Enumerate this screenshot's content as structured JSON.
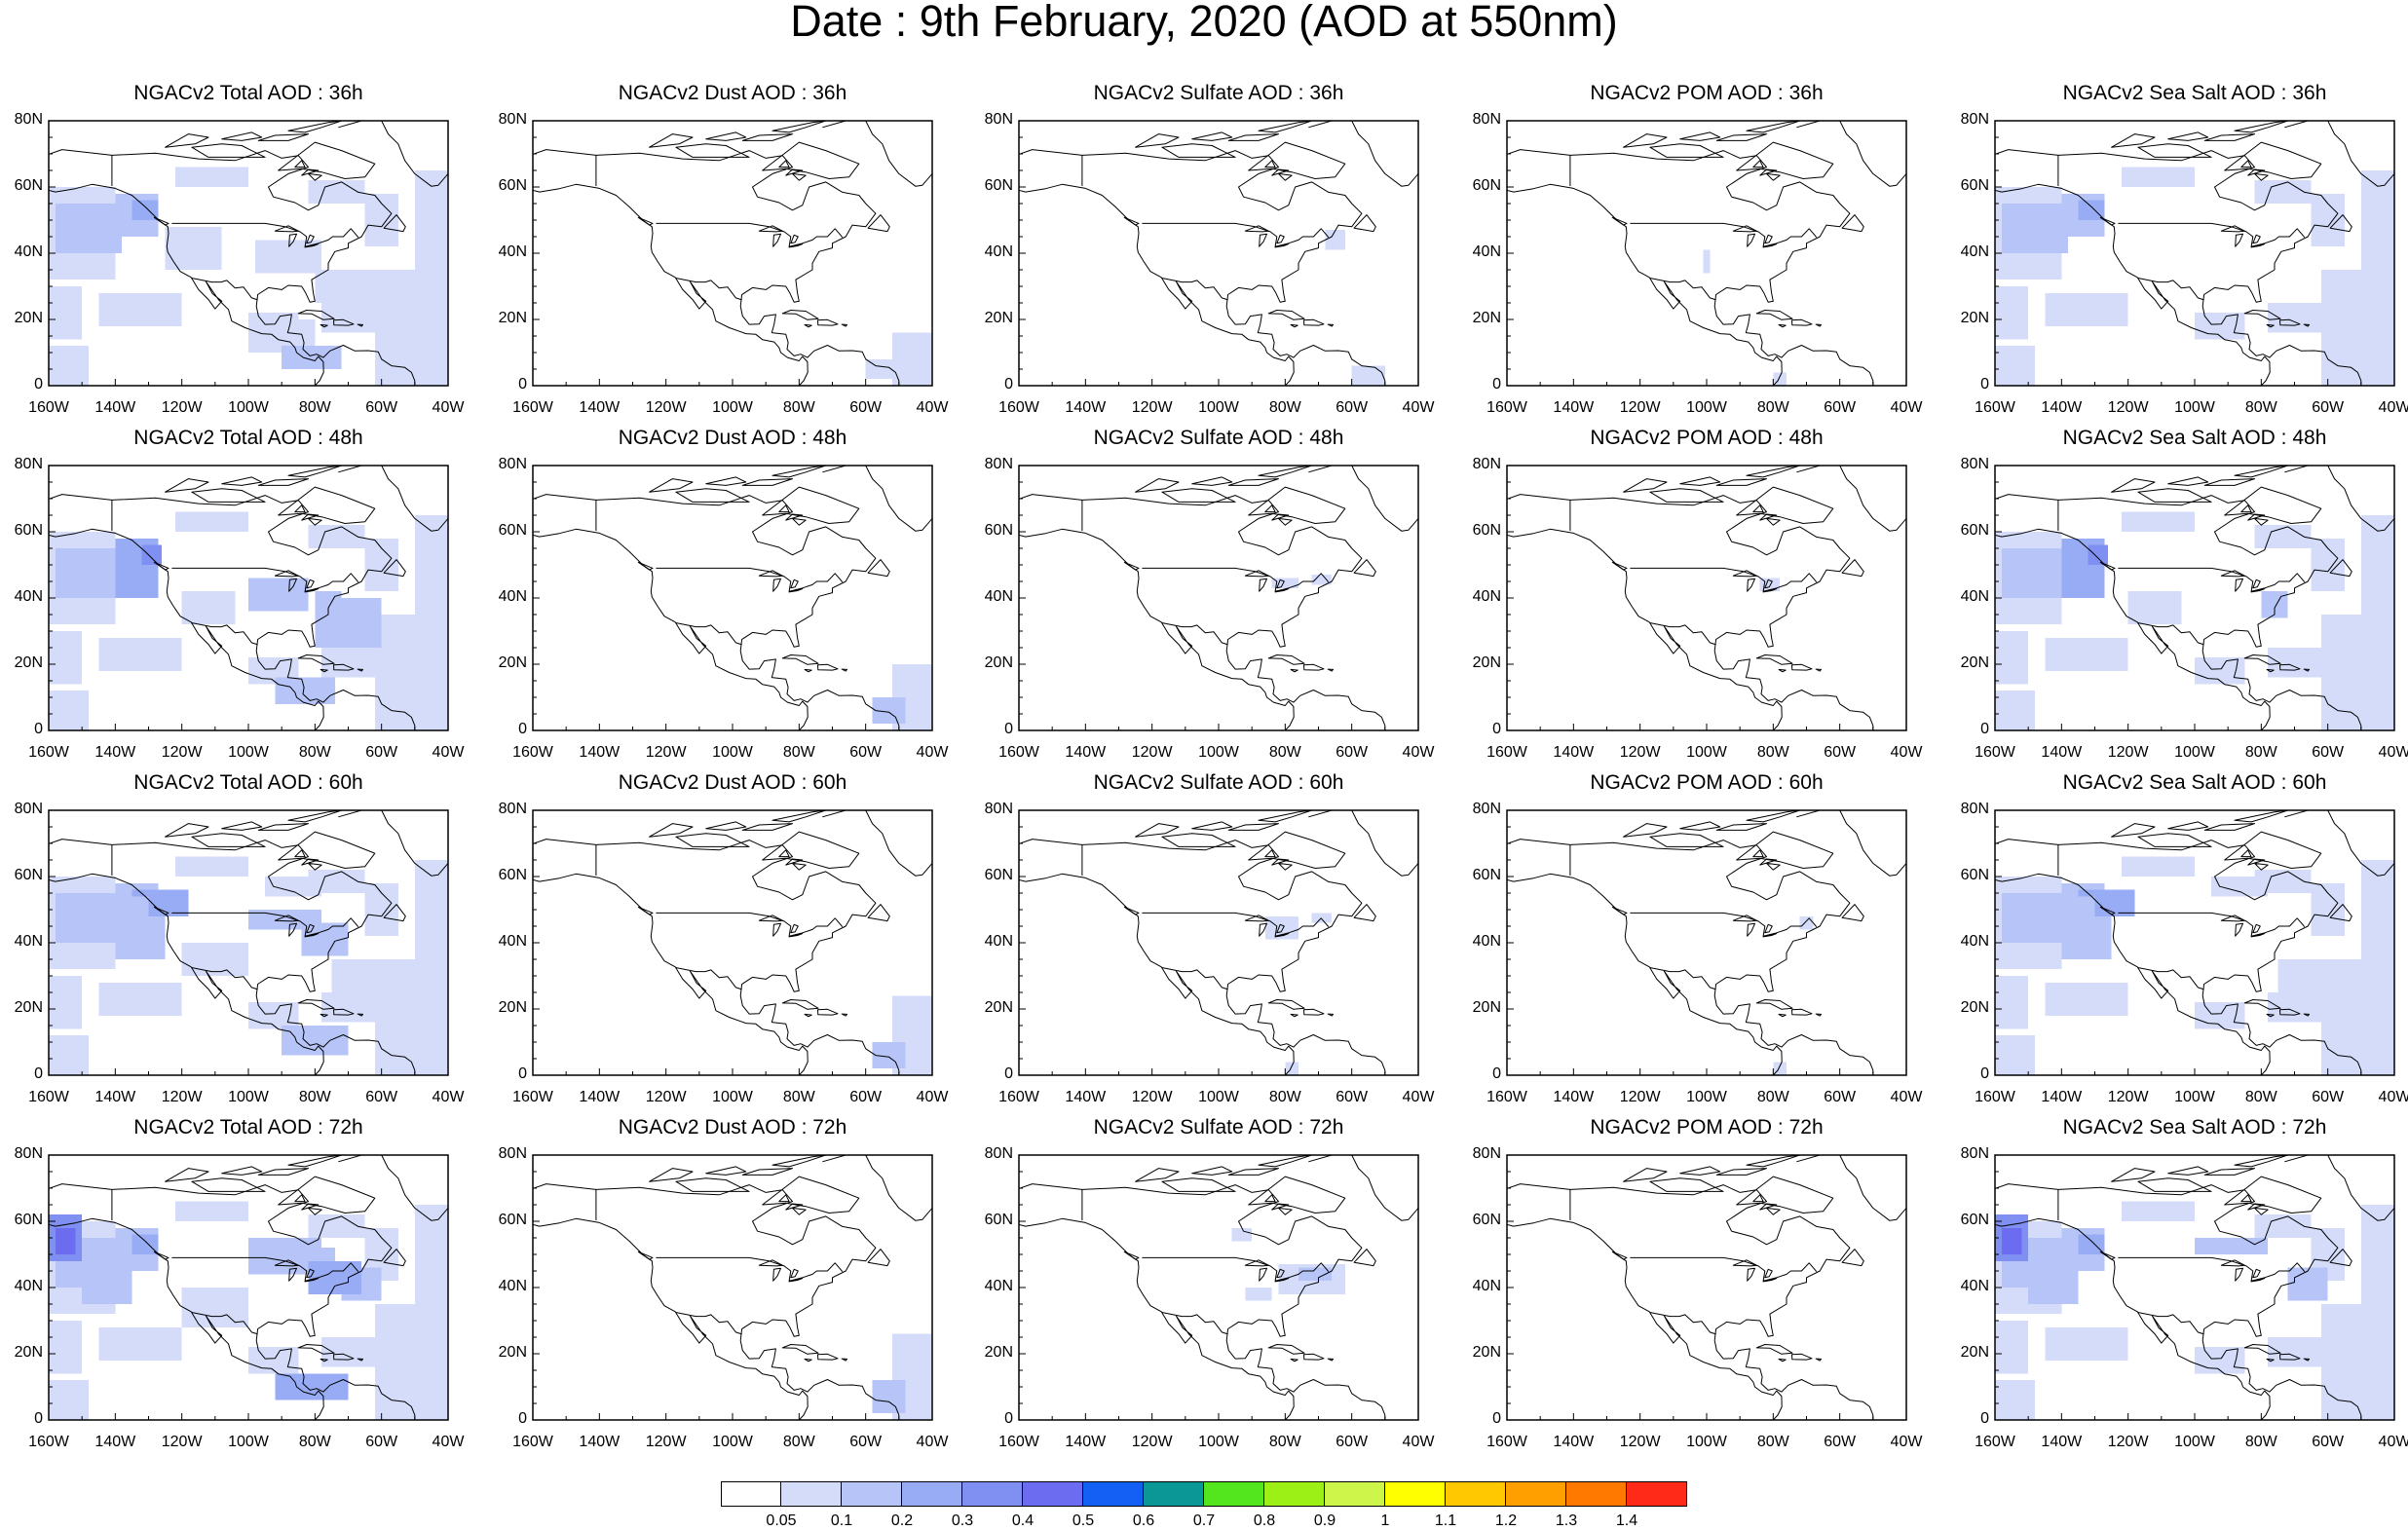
{
  "title": "Date : 9th February, 2020 (AOD at 550nm)",
  "rows": [
    {
      "panels": [
        {
          "title": "NGACv2 Total AOD : 36h",
          "field": "total"
        },
        {
          "title": "NGACv2 Dust AOD : 36h",
          "field": "dust"
        },
        {
          "title": "NGACv2 Sulfate AOD : 36h",
          "field": "sulfate"
        },
        {
          "title": "NGACv2 POM AOD : 36h",
          "field": "pom"
        },
        {
          "title": "NGACv2 Sea Salt AOD : 36h",
          "field": "seasalt"
        }
      ]
    },
    {
      "panels": [
        {
          "title": "NGACv2 Total AOD : 48h",
          "field": "total"
        },
        {
          "title": "NGACv2 Dust AOD : 48h",
          "field": "dust"
        },
        {
          "title": "NGACv2 Sulfate AOD : 48h",
          "field": "sulfate"
        },
        {
          "title": "NGACv2 POM AOD : 48h",
          "field": "pom"
        },
        {
          "title": "NGACv2 Sea Salt AOD : 48h",
          "field": "seasalt"
        }
      ]
    },
    {
      "panels": [
        {
          "title": "NGACv2 Total AOD : 60h",
          "field": "total"
        },
        {
          "title": "NGACv2 Dust AOD : 60h",
          "field": "dust"
        },
        {
          "title": "NGACv2 Sulfate AOD : 60h",
          "field": "sulfate"
        },
        {
          "title": "NGACv2 POM AOD : 60h",
          "field": "pom"
        },
        {
          "title": "NGACv2 Sea Salt AOD : 60h",
          "field": "seasalt"
        }
      ]
    },
    {
      "panels": [
        {
          "title": "NGACv2 Total AOD : 72h",
          "field": "total"
        },
        {
          "title": "NGACv2 Dust AOD : 72h",
          "field": "dust"
        },
        {
          "title": "NGACv2 Sulfate AOD : 72h",
          "field": "sulfate"
        },
        {
          "title": "NGACv2 POM AOD : 72h",
          "field": "pom"
        },
        {
          "title": "NGACv2 Sea Salt  AOD : 72h",
          "field": "seasalt"
        }
      ]
    }
  ],
  "axes": {
    "lat_labels": [
      "0",
      "20N",
      "40N",
      "60N",
      "80N"
    ],
    "lon_labels": [
      "160W",
      "140W",
      "120W",
      "100W",
      "80W",
      "60W",
      "40W"
    ],
    "lat_range": [
      0,
      80
    ],
    "lon_range": [
      -160,
      -40
    ]
  },
  "colorbar": {
    "colors": [
      "#ffffff",
      "#d4dcfa",
      "#b6c4f7",
      "#97acf5",
      "#8090f2",
      "#6b6cef",
      "#1460f5",
      "#0a9796",
      "#53e61e",
      "#9cf016",
      "#cdf54a",
      "#ffff00",
      "#ffc800",
      "#ffa000",
      "#ff7800",
      "#ff2a17"
    ],
    "labels": [
      "0.05",
      "0.1",
      "0.2",
      "0.3",
      "0.4",
      "0.5",
      "0.6",
      "0.7",
      "0.8",
      "0.9",
      "1",
      "1.1",
      "1.2",
      "1.3",
      "1.4"
    ]
  }
}
